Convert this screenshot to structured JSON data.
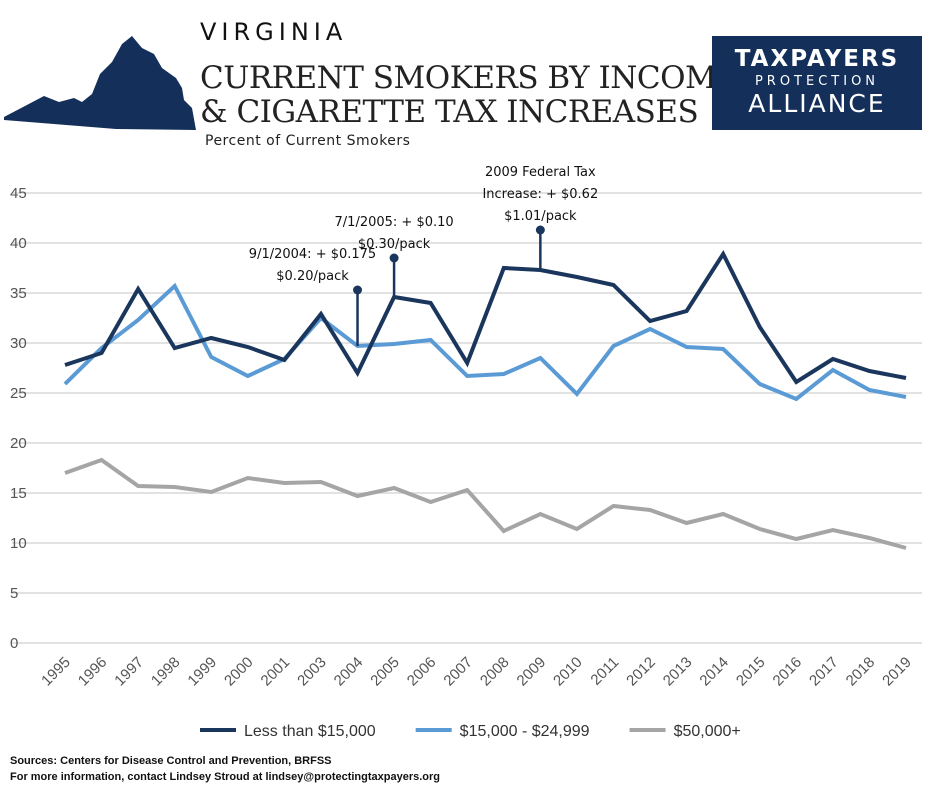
{
  "header": {
    "state": "VIRGINIA",
    "title_line1": "CURRENT SMOKERS BY INCOME",
    "title_line2": "& CIGARETTE TAX INCREASES",
    "subtitle": "Percent of Current Smokers"
  },
  "logo": {
    "line1": "TAXPAYERS",
    "line2": "PROTECTION",
    "line3": "ALLIANCE",
    "bg": "#14305a"
  },
  "chart_data": {
    "type": "line",
    "title": "Current Smokers by Income & Cigarette Tax Increases",
    "ylabel": "Percent of Current Smokers",
    "ylim": [
      0,
      45
    ],
    "yticks": [
      "0",
      "5",
      "10",
      "15",
      "20",
      "25",
      "30",
      "35",
      "40",
      "45"
    ],
    "grid": true,
    "legend": "bottom",
    "categories": [
      "1995",
      "1996",
      "1997",
      "1998",
      "1999",
      "2000",
      "2001",
      "2003",
      "2004",
      "2005",
      "2006",
      "2007",
      "2008",
      "2009",
      "2010",
      "2011",
      "2012",
      "2013",
      "2014",
      "2015",
      "2016",
      "2017",
      "2018",
      "2019"
    ],
    "series": [
      {
        "name": "Less than $15,000",
        "color": "#1b365d",
        "values": [
          27.8,
          29.0,
          35.4,
          29.5,
          30.5,
          29.6,
          28.3,
          32.9,
          27.0,
          34.6,
          34.0,
          28.0,
          37.5,
          37.3,
          36.6,
          35.8,
          32.2,
          33.2,
          38.9,
          31.6,
          26.1,
          28.4,
          27.2,
          26.5
        ]
      },
      {
        "name": "$15,000 - $24,999",
        "color": "#5b9bd5",
        "values": [
          25.9,
          29.5,
          32.3,
          35.7,
          28.6,
          26.7,
          28.4,
          32.5,
          29.7,
          29.9,
          30.3,
          26.7,
          26.9,
          28.5,
          24.9,
          29.7,
          31.4,
          29.6,
          29.4,
          25.9,
          24.4,
          27.3,
          25.3,
          24.6
        ]
      },
      {
        "name": "$50,000+",
        "color": "#a5a5a5",
        "values": [
          17.0,
          18.3,
          15.7,
          15.6,
          15.1,
          16.5,
          16.0,
          16.1,
          14.7,
          15.5,
          14.1,
          15.3,
          11.2,
          12.9,
          11.4,
          13.7,
          13.3,
          12.0,
          12.9,
          11.4,
          10.4,
          11.3,
          10.5,
          9.5
        ]
      }
    ],
    "annotations": [
      {
        "category": "2004",
        "base": 29.7,
        "top": 35.3,
        "lines": [
          "9/1/2004: + $0.175",
          "$0.20/pack"
        ]
      },
      {
        "category": "2005",
        "base": 34.6,
        "top": 38.5,
        "lines": [
          "7/1/2005: + $0.10",
          "$0.30/pack"
        ]
      },
      {
        "category": "2009",
        "base": 37.3,
        "top": 41.3,
        "lines": [
          "2009 Federal Tax",
          "Increase: + $0.62",
          "$1.01/pack"
        ]
      }
    ]
  },
  "footer": {
    "sources": "Sources:  Centers for Disease Control and Prevention, BRFSS",
    "contact": "For more information, contact Lindsey Stroud at lindsey@protectingtaxpayers.org"
  }
}
